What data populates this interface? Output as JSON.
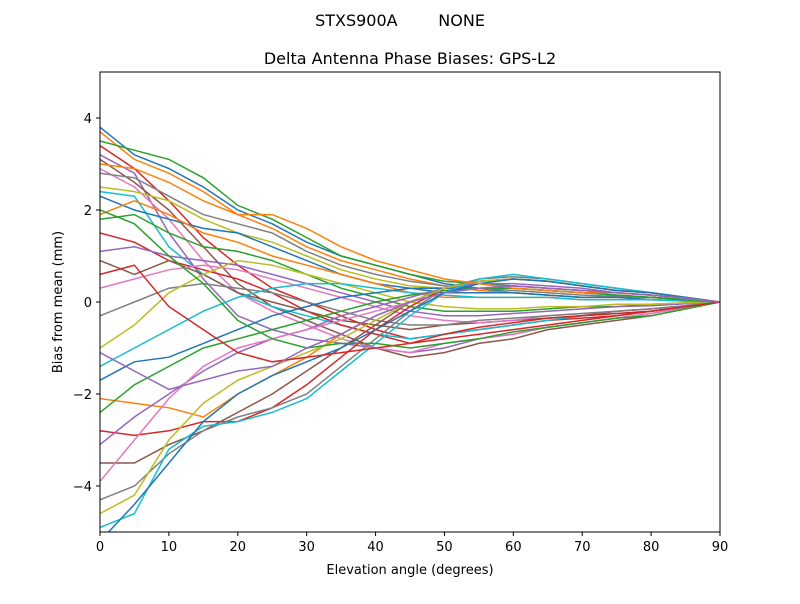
{
  "chart_data": {
    "type": "line",
    "suptitle": "STXS900A        NONE",
    "title": "Delta Antenna Phase Biases: GPS-L2",
    "xlabel": "Elevation angle (degrees)",
    "ylabel": "Bias from mean (mm)",
    "xlim": [
      0,
      90
    ],
    "ylim": [
      -5,
      5
    ],
    "xticks": [
      0,
      10,
      20,
      30,
      40,
      50,
      60,
      70,
      80,
      90
    ],
    "yticks": [
      -4,
      -2,
      0,
      2,
      4
    ],
    "grid": false,
    "colors": [
      "#1f77b4",
      "#ff7f0e",
      "#2ca02c",
      "#d62728",
      "#9467bd",
      "#8c564b",
      "#e377c2",
      "#7f7f7f",
      "#bcbd22",
      "#17becf"
    ],
    "x": [
      0,
      5,
      10,
      15,
      20,
      25,
      30,
      35,
      40,
      45,
      50,
      55,
      60,
      65,
      70,
      75,
      80,
      85,
      90
    ],
    "series": [
      {
        "values": [
          3.8,
          3.2,
          2.9,
          2.5,
          2.0,
          1.7,
          1.3,
          1.0,
          0.8,
          0.6,
          0.4,
          0.3,
          0.2,
          0.15,
          0.1,
          0.1,
          0.1,
          0.05,
          0
        ]
      },
      {
        "values": [
          3.7,
          3.1,
          2.8,
          2.4,
          1.9,
          1.6,
          1.2,
          0.9,
          0.7,
          0.5,
          0.35,
          0.25,
          0.2,
          0.15,
          0.1,
          0.1,
          0.1,
          0.05,
          0
        ]
      },
      {
        "values": [
          3.5,
          3.3,
          3.1,
          2.7,
          2.1,
          1.8,
          1.4,
          1.0,
          0.8,
          0.6,
          0.45,
          0.4,
          0.35,
          0.3,
          0.25,
          0.2,
          0.15,
          0.08,
          0
        ]
      },
      {
        "values": [
          3.4,
          2.9,
          2.2,
          1.4,
          0.8,
          0.3,
          0.0,
          -0.3,
          -0.6,
          -0.8,
          -0.7,
          -0.6,
          -0.5,
          -0.4,
          -0.35,
          -0.3,
          -0.2,
          -0.1,
          0
        ]
      },
      {
        "values": [
          3.2,
          2.8,
          1.5,
          0.5,
          -0.3,
          -0.6,
          -0.8,
          -0.9,
          -1.0,
          -1.1,
          -1.0,
          -0.8,
          -0.7,
          -0.55,
          -0.45,
          -0.35,
          -0.25,
          -0.12,
          0
        ]
      },
      {
        "values": [
          3.1,
          2.6,
          2.0,
          1.2,
          0.4,
          -0.1,
          -0.4,
          -0.7,
          -1.0,
          -1.2,
          -1.1,
          -0.9,
          -0.8,
          -0.6,
          -0.5,
          -0.4,
          -0.3,
          -0.15,
          0
        ]
      },
      {
        "values": [
          2.9,
          2.5,
          1.8,
          0.9,
          0.2,
          -0.2,
          -0.5,
          -0.8,
          -1.0,
          -1.1,
          -0.9,
          -0.8,
          -0.7,
          -0.55,
          -0.45,
          -0.35,
          -0.25,
          -0.12,
          0
        ]
      },
      {
        "values": [
          2.8,
          2.7,
          2.3,
          1.9,
          1.7,
          1.5,
          1.1,
          0.8,
          0.6,
          0.45,
          0.35,
          0.3,
          0.25,
          0.2,
          0.15,
          0.12,
          0.1,
          0.05,
          0
        ]
      },
      {
        "values": [
          2.5,
          2.4,
          2.2,
          1.8,
          1.5,
          1.3,
          1.0,
          0.7,
          0.5,
          0.35,
          0.3,
          0.3,
          0.3,
          0.25,
          0.2,
          0.15,
          0.1,
          0.05,
          0
        ]
      },
      {
        "values": [
          2.4,
          2.3,
          1.2,
          0.6,
          0.2,
          -0.1,
          -0.3,
          -0.5,
          -0.7,
          -0.8,
          -0.7,
          -0.6,
          -0.5,
          -0.4,
          -0.3,
          -0.25,
          -0.2,
          -0.1,
          0
        ]
      },
      {
        "values": [
          2.3,
          2.0,
          1.8,
          1.6,
          1.5,
          1.2,
          0.9,
          0.6,
          0.4,
          0.3,
          0.2,
          0.2,
          0.2,
          0.15,
          0.1,
          0.1,
          0.05,
          0.03,
          0
        ]
      },
      {
        "values": [
          1.9,
          2.2,
          1.9,
          1.5,
          1.3,
          1.0,
          0.8,
          0.6,
          0.4,
          0.2,
          0.1,
          0.1,
          0.1,
          0.1,
          0.05,
          0.05,
          0.05,
          0.02,
          0
        ]
      },
      {
        "values": [
          1.8,
          1.9,
          1.5,
          1.2,
          1.1,
          0.9,
          0.6,
          0.3,
          0.1,
          -0.1,
          -0.2,
          -0.2,
          -0.2,
          -0.15,
          -0.1,
          -0.1,
          -0.05,
          -0.02,
          0
        ]
      },
      {
        "values": [
          1.5,
          1.3,
          0.9,
          0.7,
          0.5,
          0.2,
          -0.2,
          -0.5,
          -0.7,
          -0.9,
          -0.8,
          -0.7,
          -0.6,
          -0.5,
          -0.4,
          -0.3,
          -0.2,
          -0.1,
          0
        ]
      },
      {
        "values": [
          1.1,
          1.2,
          1.0,
          0.9,
          0.8,
          0.6,
          0.4,
          0.2,
          0.0,
          -0.2,
          -0.3,
          -0.3,
          -0.25,
          -0.2,
          -0.15,
          -0.1,
          -0.08,
          -0.04,
          0
        ]
      },
      {
        "values": [
          0.9,
          0.6,
          0.9,
          0.6,
          0.2,
          0.0,
          -0.2,
          -0.4,
          -0.5,
          -0.6,
          -0.5,
          -0.45,
          -0.4,
          -0.35,
          -0.3,
          -0.2,
          -0.15,
          -0.08,
          0
        ]
      },
      {
        "values": [
          0.3,
          0.5,
          0.7,
          0.8,
          0.7,
          0.5,
          0.3,
          0.1,
          -0.1,
          -0.3,
          -0.4,
          -0.45,
          -0.4,
          -0.3,
          -0.25,
          -0.2,
          -0.15,
          -0.08,
          0
        ]
      },
      {
        "values": [
          -0.3,
          0.0,
          0.3,
          0.4,
          0.3,
          0.2,
          0.0,
          -0.2,
          -0.4,
          -0.5,
          -0.5,
          -0.4,
          -0.35,
          -0.3,
          -0.25,
          -0.2,
          -0.15,
          -0.08,
          0
        ]
      },
      {
        "values": [
          -1.0,
          -0.5,
          0.2,
          0.6,
          0.9,
          0.8,
          0.6,
          0.4,
          0.2,
          0.0,
          -0.1,
          -0.15,
          -0.15,
          -0.1,
          -0.1,
          -0.05,
          -0.05,
          -0.02,
          0
        ]
      },
      {
        "values": [
          -1.4,
          -1.0,
          -0.6,
          -0.2,
          0.1,
          0.3,
          0.4,
          0.4,
          0.3,
          0.2,
          0.15,
          0.1,
          0.1,
          0.1,
          0.05,
          0.05,
          0.05,
          0.02,
          0
        ]
      },
      {
        "values": [
          -1.7,
          -1.3,
          -1.2,
          -0.9,
          -0.6,
          -0.3,
          -0.1,
          0.1,
          0.2,
          0.3,
          0.3,
          0.3,
          0.3,
          0.25,
          0.2,
          0.15,
          0.1,
          0.05,
          0
        ]
      },
      {
        "values": [
          -2.1,
          -2.2,
          -2.3,
          -2.5,
          -2.0,
          -1.6,
          -1.2,
          -0.7,
          -0.3,
          0.0,
          0.2,
          0.3,
          0.35,
          0.3,
          0.25,
          0.2,
          0.15,
          0.08,
          0
        ]
      },
      {
        "values": [
          -2.4,
          -1.8,
          -1.4,
          -1.0,
          -0.8,
          -0.6,
          -0.4,
          -0.2,
          0.0,
          0.15,
          0.25,
          0.3,
          0.3,
          0.25,
          0.2,
          0.15,
          0.1,
          0.05,
          0
        ]
      },
      {
        "values": [
          -2.8,
          -2.9,
          -2.8,
          -2.6,
          -2.6,
          -2.3,
          -1.8,
          -1.2,
          -0.6,
          -0.1,
          0.3,
          0.45,
          0.5,
          0.45,
          0.35,
          0.25,
          0.2,
          0.1,
          0
        ]
      },
      {
        "values": [
          -3.1,
          -2.5,
          -2.0,
          -1.5,
          -1.1,
          -0.8,
          -0.6,
          -0.3,
          -0.1,
          0.1,
          0.3,
          0.4,
          0.4,
          0.35,
          0.3,
          0.2,
          0.15,
          0.08,
          0
        ]
      },
      {
        "values": [
          -3.5,
          -3.5,
          -3.1,
          -2.8,
          -2.4,
          -2.0,
          -1.5,
          -1.0,
          -0.5,
          0.0,
          0.3,
          0.45,
          0.5,
          0.45,
          0.35,
          0.25,
          0.2,
          0.1,
          0
        ]
      },
      {
        "values": [
          -3.9,
          -3.0,
          -2.1,
          -1.4,
          -1.0,
          -0.8,
          -0.6,
          -0.4,
          -0.2,
          0.0,
          0.2,
          0.3,
          0.35,
          0.3,
          0.25,
          0.2,
          0.15,
          0.08,
          0
        ]
      },
      {
        "values": [
          -4.3,
          -4.0,
          -3.3,
          -2.8,
          -2.5,
          -2.3,
          -2.0,
          -1.4,
          -0.8,
          -0.2,
          0.3,
          0.5,
          0.55,
          0.5,
          0.4,
          0.3,
          0.2,
          0.1,
          0
        ]
      },
      {
        "values": [
          -4.6,
          -4.2,
          -3.0,
          -2.2,
          -1.7,
          -1.4,
          -1.1,
          -0.8,
          -0.4,
          0.0,
          0.3,
          0.45,
          0.5,
          0.45,
          0.35,
          0.25,
          0.2,
          0.1,
          0
        ]
      },
      {
        "values": [
          -4.9,
          -4.6,
          -3.2,
          -2.7,
          -2.6,
          -2.4,
          -2.1,
          -1.5,
          -0.9,
          -0.3,
          0.2,
          0.5,
          0.6,
          0.5,
          0.4,
          0.3,
          0.2,
          0.1,
          0
        ]
      },
      {
        "values": [
          -5.2,
          -4.4,
          -3.5,
          -2.6,
          -2.0,
          -1.6,
          -1.3,
          -1.0,
          -0.6,
          -0.2,
          0.2,
          0.4,
          0.5,
          0.45,
          0.35,
          0.25,
          0.2,
          0.1,
          0
        ]
      },
      {
        "values": [
          3.0,
          2.9,
          2.6,
          2.2,
          1.9,
          1.9,
          1.6,
          1.2,
          0.9,
          0.7,
          0.5,
          0.4,
          0.3,
          0.25,
          0.2,
          0.2,
          0.15,
          0.08,
          0
        ]
      },
      {
        "values": [
          2.0,
          1.7,
          1.0,
          0.4,
          -0.4,
          -0.8,
          -1.0,
          -0.9,
          -0.9,
          -1.0,
          -0.9,
          -0.8,
          -0.65,
          -0.55,
          -0.45,
          -0.35,
          -0.3,
          -0.15,
          0
        ]
      },
      {
        "values": [
          0.6,
          0.8,
          -0.1,
          -0.6,
          -1.1,
          -1.3,
          -1.2,
          -1.1,
          -1.0,
          -0.9,
          -0.7,
          -0.55,
          -0.45,
          -0.35,
          -0.3,
          -0.25,
          -0.2,
          -0.1,
          0
        ]
      },
      {
        "values": [
          -1.1,
          -1.5,
          -1.9,
          -1.7,
          -1.5,
          -1.4,
          -1.0,
          -0.7,
          -0.3,
          0.0,
          0.2,
          0.3,
          0.35,
          0.3,
          0.25,
          0.2,
          0.15,
          0.08,
          0
        ]
      }
    ]
  }
}
